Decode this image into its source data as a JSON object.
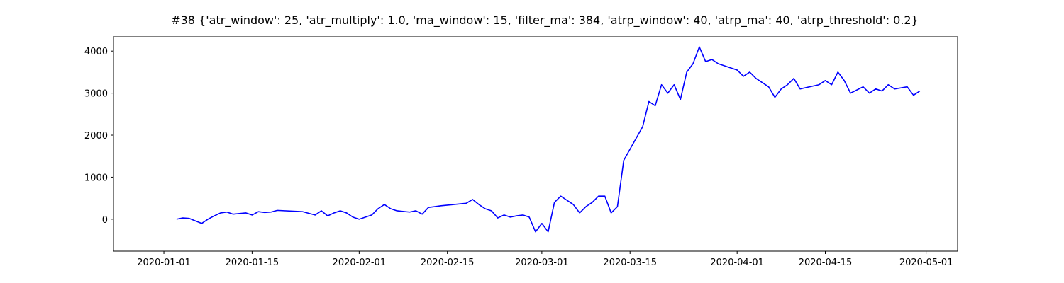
{
  "chart_data": {
    "type": "line",
    "title": "#38 {'atr_window': 25, 'atr_multiply': 1.0, 'ma_window': 15, 'filter_ma': 384, 'atrp_window': 40, 'atrp_ma': 40, 'atrp_threshold': 0.2}",
    "x": [
      "2020-01-03",
      "2020-01-04",
      "2020-01-05",
      "2020-01-06",
      "2020-01-07",
      "2020-01-08",
      "2020-01-09",
      "2020-01-10",
      "2020-01-11",
      "2020-01-12",
      "2020-01-14",
      "2020-01-15",
      "2020-01-16",
      "2020-01-17",
      "2020-01-18",
      "2020-01-19",
      "2020-01-23",
      "2020-01-25",
      "2020-01-26",
      "2020-01-27",
      "2020-01-28",
      "2020-01-29",
      "2020-01-30",
      "2020-01-31",
      "2020-02-01",
      "2020-02-03",
      "2020-02-04",
      "2020-02-05",
      "2020-02-06",
      "2020-02-07",
      "2020-02-09",
      "2020-02-10",
      "2020-02-11",
      "2020-02-12",
      "2020-02-13",
      "2020-02-14",
      "2020-02-16",
      "2020-02-18",
      "2020-02-19",
      "2020-02-20",
      "2020-02-21",
      "2020-02-22",
      "2020-02-23",
      "2020-02-24",
      "2020-02-25",
      "2020-02-26",
      "2020-02-27",
      "2020-02-28",
      "2020-02-29",
      "2020-03-01",
      "2020-03-02",
      "2020-03-03",
      "2020-03-04",
      "2020-03-05",
      "2020-03-06",
      "2020-03-07",
      "2020-03-08",
      "2020-03-09",
      "2020-03-10",
      "2020-03-11",
      "2020-03-12",
      "2020-03-13",
      "2020-03-14",
      "2020-03-17",
      "2020-03-18",
      "2020-03-19",
      "2020-03-20",
      "2020-03-21",
      "2020-03-22",
      "2020-03-23",
      "2020-03-24",
      "2020-03-25",
      "2020-03-26",
      "2020-03-27",
      "2020-03-28",
      "2020-03-29",
      "2020-03-31",
      "2020-04-01",
      "2020-04-02",
      "2020-04-03",
      "2020-04-04",
      "2020-04-06",
      "2020-04-07",
      "2020-04-08",
      "2020-04-09",
      "2020-04-10",
      "2020-04-11",
      "2020-04-14",
      "2020-04-15",
      "2020-04-16",
      "2020-04-17",
      "2020-04-18",
      "2020-04-19",
      "2020-04-21",
      "2020-04-22",
      "2020-04-23",
      "2020-04-24",
      "2020-04-25",
      "2020-04-26",
      "2020-04-28",
      "2020-04-29",
      "2020-04-30"
    ],
    "series": [
      {
        "color": "#0000ff",
        "values": [
          0,
          30,
          20,
          -40,
          -100,
          0,
          80,
          150,
          170,
          120,
          150,
          100,
          180,
          160,
          170,
          210,
          180,
          100,
          200,
          80,
          150,
          200,
          150,
          50,
          0,
          100,
          250,
          350,
          250,
          200,
          170,
          200,
          120,
          280,
          300,
          320,
          350,
          380,
          470,
          350,
          250,
          200,
          30,
          100,
          50,
          80,
          100,
          50,
          -300,
          -100,
          -300,
          400,
          550,
          450,
          350,
          150,
          300,
          400,
          550,
          550,
          150,
          300,
          1400,
          2200,
          2800,
          2700,
          3200,
          3000,
          3200,
          2850,
          3500,
          3700,
          4100,
          3750,
          3800,
          3700,
          3600,
          3550,
          3400,
          3500,
          3350,
          3150,
          2900,
          3100,
          3200,
          3350,
          3100,
          3200,
          3300,
          3200,
          3500,
          3300,
          3000,
          3150,
          3000,
          3100,
          3050,
          3200,
          3100,
          3150,
          2950,
          3050
        ]
      }
    ],
    "xlim": [
      "2019-12-24",
      "2020-05-06"
    ],
    "xticks": [
      "2020-01-01",
      "2020-01-15",
      "2020-02-01",
      "2020-02-15",
      "2020-03-01",
      "2020-03-15",
      "2020-04-01",
      "2020-04-15",
      "2020-05-01"
    ],
    "ylim": [
      -760,
      4340
    ],
    "yticks": [
      0,
      1000,
      2000,
      3000,
      4000
    ],
    "grid": false
  }
}
